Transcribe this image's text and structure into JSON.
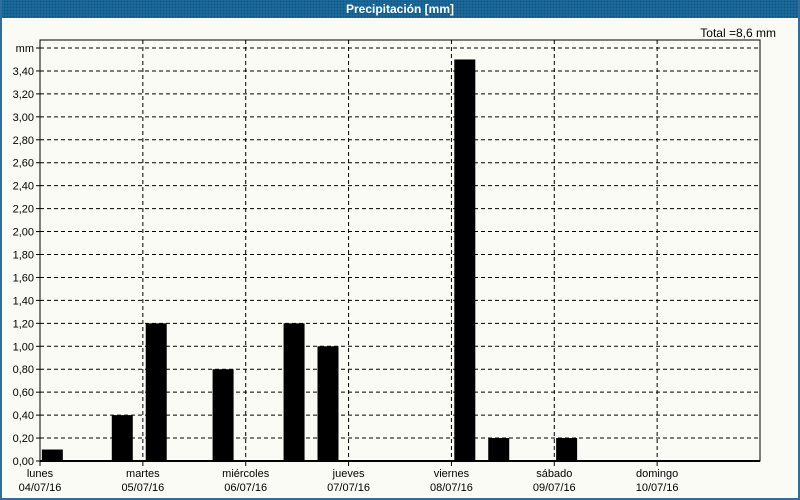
{
  "window": {
    "title": "Precipitación [mm]",
    "total_label": "Total =8,6 mm"
  },
  "colors": {
    "titlebar_bg": "#1e6fa2",
    "titlebar_text": "#ffffff",
    "window_border": "#2f6e9e",
    "background": "#fbfbf5",
    "bar": "#000000",
    "grid": "#000000",
    "text": "#000000"
  },
  "chart_data": {
    "type": "bar",
    "title": "Precipitación [mm]",
    "unit_label": "mm",
    "total_text": "Total =8,6 mm",
    "total_mm": 8.6,
    "ylim": [
      0,
      3.6
    ],
    "ytick_step": 0.2,
    "ytick_labels": [
      "0,00",
      "0,20",
      "0,40",
      "0,60",
      "0,80",
      "1,00",
      "1,20",
      "1,40",
      "1,60",
      "1,80",
      "2,00",
      "2,20",
      "2,40",
      "2,60",
      "2,80",
      "3,00",
      "3,20",
      "3,40"
    ],
    "grid": "dashed",
    "legend": "none",
    "days": [
      {
        "name": "lunes",
        "date": "04/07/16"
      },
      {
        "name": "martes",
        "date": "05/07/16"
      },
      {
        "name": "miércoles",
        "date": "06/07/16"
      },
      {
        "name": "jueves",
        "date": "07/07/16"
      },
      {
        "name": "viernes",
        "date": "08/07/16"
      },
      {
        "name": "sábado",
        "date": "09/07/16"
      },
      {
        "name": "domingo",
        "date": "10/07/16"
      }
    ],
    "bars": [
      {
        "day_position": 0.12,
        "value": 0.1
      },
      {
        "day_position": 0.8,
        "value": 0.4
      },
      {
        "day_position": 1.13,
        "value": 1.2
      },
      {
        "day_position": 1.78,
        "value": 0.8
      },
      {
        "day_position": 2.47,
        "value": 1.2
      },
      {
        "day_position": 2.8,
        "value": 1.0
      },
      {
        "day_position": 4.13,
        "value": 3.5
      },
      {
        "day_position": 4.46,
        "value": 0.2
      },
      {
        "day_position": 5.12,
        "value": 0.2
      }
    ]
  }
}
